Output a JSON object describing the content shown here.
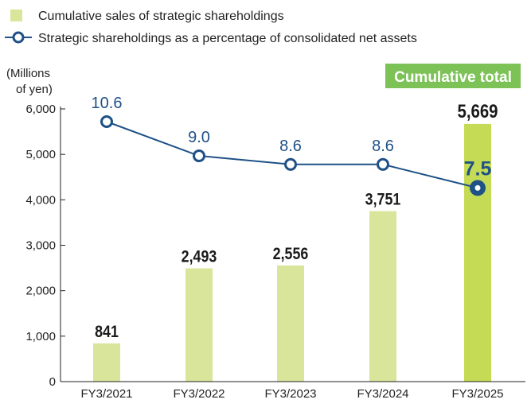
{
  "chart_data": {
    "type": "bar",
    "categories": [
      "FY3/2021",
      "FY3/2022",
      "FY3/2023",
      "FY3/2024",
      "FY3/2025"
    ],
    "series": [
      {
        "name": "Cumulative sales of strategic shareholdings",
        "kind": "bar",
        "axis": "left",
        "values": [
          841,
          2493,
          2556,
          3751,
          5669
        ],
        "labels": [
          "841",
          "2,493",
          "2,556",
          "3,751",
          "5,669"
        ],
        "color": "#d9e59a",
        "highlight_color": "#c6db55"
      },
      {
        "name": "Strategic shareholdings as a percentage of consolidated net assets",
        "kind": "line",
        "axis": "right-hidden",
        "values": [
          10.6,
          9.0,
          8.6,
          8.6,
          7.5
        ],
        "labels": [
          "10.6",
          "9.0",
          "8.6",
          "8.6",
          "7.5"
        ],
        "color": "#1f5187"
      }
    ],
    "ylabel": "(Millions of yen)",
    "ylabel_lines": [
      "(Millions",
      "of yen)"
    ],
    "ylim": [
      0,
      6000
    ],
    "yticks": [
      0,
      1000,
      2000,
      3000,
      4000,
      5000,
      6000
    ],
    "ytick_labels": [
      "0",
      "1,000",
      "2,000",
      "3,000",
      "4,000",
      "5,000",
      "6,000"
    ],
    "grid": false,
    "legend": "top-left",
    "annotation": {
      "text": "Cumulative total",
      "color": "#7dc257",
      "category": "FY3/2025"
    }
  }
}
